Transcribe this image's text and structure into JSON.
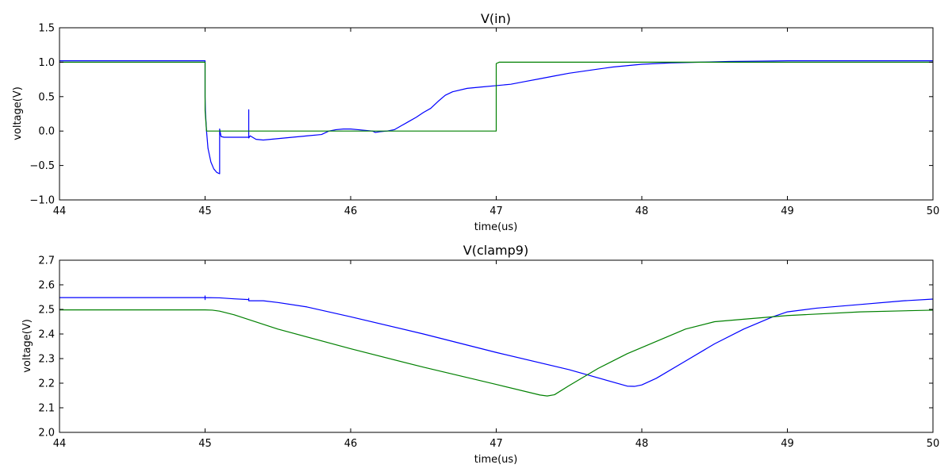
{
  "chart_data": [
    {
      "type": "line",
      "title": "V(in)",
      "xlabel": "time(us)",
      "ylabel": "voltage(V)",
      "xlim": [
        44,
        50
      ],
      "ylim": [
        -1.0,
        1.5
      ],
      "x_ticks": [
        44,
        45,
        46,
        47,
        48,
        49,
        50
      ],
      "x_tick_labels": [
        "44",
        "45",
        "46",
        "47",
        "48",
        "49",
        "50"
      ],
      "y_ticks": [
        -1.0,
        -0.5,
        0.0,
        0.5,
        1.0,
        1.5
      ],
      "y_tick_labels": [
        "−1.0",
        "−0.5",
        "0.0",
        "0.5",
        "1.0",
        "1.5"
      ],
      "grid": false,
      "legend": "none",
      "series": [
        {
          "color": "#0000ff",
          "x": [
            44,
            45.0,
            45.0,
            45.002,
            45.01,
            45.02,
            45.04,
            45.06,
            45.08,
            45.1,
            45.1,
            45.11,
            45.13,
            45.2,
            45.3,
            45.3,
            45.3,
            45.31,
            45.35,
            45.4,
            45.5,
            45.6,
            45.7,
            45.8,
            45.85,
            45.9,
            45.95,
            46.0,
            46.05,
            46.1,
            46.15,
            46.17,
            46.2,
            46.25,
            46.3,
            46.35,
            46.4,
            46.45,
            46.5,
            46.55,
            46.6,
            46.65,
            46.7,
            46.8,
            46.9,
            47.0,
            47.1,
            47.2,
            47.3,
            47.4,
            47.5,
            47.6,
            47.7,
            47.8,
            47.9,
            48.0,
            48.2,
            48.4,
            48.6,
            48.8,
            49.0,
            49.5,
            50.0
          ],
          "y": [
            1.02,
            1.02,
            0.5,
            0.3,
            0.0,
            -0.25,
            -0.45,
            -0.55,
            -0.6,
            -0.62,
            0.03,
            -0.08,
            -0.09,
            -0.09,
            -0.09,
            0.31,
            -0.1,
            -0.07,
            -0.12,
            -0.13,
            -0.11,
            -0.09,
            -0.07,
            -0.05,
            0.0,
            0.02,
            0.03,
            0.03,
            0.02,
            0.01,
            0.0,
            -0.02,
            -0.01,
            0.0,
            0.02,
            0.08,
            0.14,
            0.2,
            0.27,
            0.33,
            0.43,
            0.52,
            0.57,
            0.62,
            0.64,
            0.66,
            0.68,
            0.72,
            0.76,
            0.8,
            0.84,
            0.87,
            0.9,
            0.93,
            0.95,
            0.97,
            0.99,
            1.0,
            1.01,
            1.015,
            1.02,
            1.02,
            1.02
          ]
        },
        {
          "color": "#008000",
          "x": [
            44,
            45.0,
            45.0,
            45.01,
            45.04,
            45.1,
            45.5,
            46.0,
            46.5,
            47.0,
            47.0,
            47.02,
            47.1,
            48.0,
            49.0,
            50.0
          ],
          "y": [
            1.0,
            1.0,
            0.3,
            0.0,
            0.0,
            0.0,
            0.0,
            0.0,
            0.0,
            0.0,
            0.98,
            1.0,
            1.0,
            1.0,
            1.0,
            1.0
          ]
        }
      ]
    },
    {
      "type": "line",
      "title": "V(clamp9)",
      "xlabel": "time(us)",
      "ylabel": "voltage(V)",
      "xlim": [
        44,
        50
      ],
      "ylim": [
        2.0,
        2.7
      ],
      "x_ticks": [
        44,
        45,
        46,
        47,
        48,
        49,
        50
      ],
      "x_tick_labels": [
        "44",
        "45",
        "46",
        "47",
        "48",
        "49",
        "50"
      ],
      "y_ticks": [
        2.0,
        2.1,
        2.2,
        2.3,
        2.4,
        2.5,
        2.6,
        2.7
      ],
      "y_tick_labels": [
        "2.0",
        "2.1",
        "2.2",
        "2.3",
        "2.4",
        "2.5",
        "2.6",
        "2.7"
      ],
      "grid": false,
      "legend": "none",
      "series": [
        {
          "color": "#0000ff",
          "x": [
            44,
            45.0,
            45.0,
            45.0,
            45.0,
            45.1,
            45.2,
            45.3,
            45.3,
            45.3,
            45.4,
            45.5,
            45.7,
            46.0,
            46.5,
            47.0,
            47.5,
            47.9,
            47.95,
            48.0,
            48.1,
            48.3,
            48.5,
            48.7,
            48.9,
            49.0,
            49.2,
            49.5,
            49.8,
            50.0
          ],
          "y": [
            2.548,
            2.548,
            2.555,
            2.54,
            2.548,
            2.547,
            2.543,
            2.54,
            2.545,
            2.535,
            2.535,
            2.528,
            2.51,
            2.47,
            2.4,
            2.325,
            2.255,
            2.188,
            2.187,
            2.193,
            2.22,
            2.29,
            2.36,
            2.42,
            2.47,
            2.49,
            2.505,
            2.52,
            2.535,
            2.542
          ]
        },
        {
          "color": "#008000",
          "x": [
            44,
            45.0,
            45.05,
            45.1,
            45.2,
            45.5,
            46.0,
            46.5,
            47.0,
            47.3,
            47.35,
            47.4,
            47.5,
            47.7,
            47.9,
            48.1,
            48.3,
            48.5,
            48.7,
            49.0,
            49.5,
            50.0
          ],
          "y": [
            2.498,
            2.498,
            2.497,
            2.493,
            2.478,
            2.42,
            2.34,
            2.265,
            2.195,
            2.152,
            2.148,
            2.153,
            2.19,
            2.26,
            2.32,
            2.37,
            2.42,
            2.45,
            2.46,
            2.475,
            2.49,
            2.497
          ]
        }
      ]
    }
  ]
}
